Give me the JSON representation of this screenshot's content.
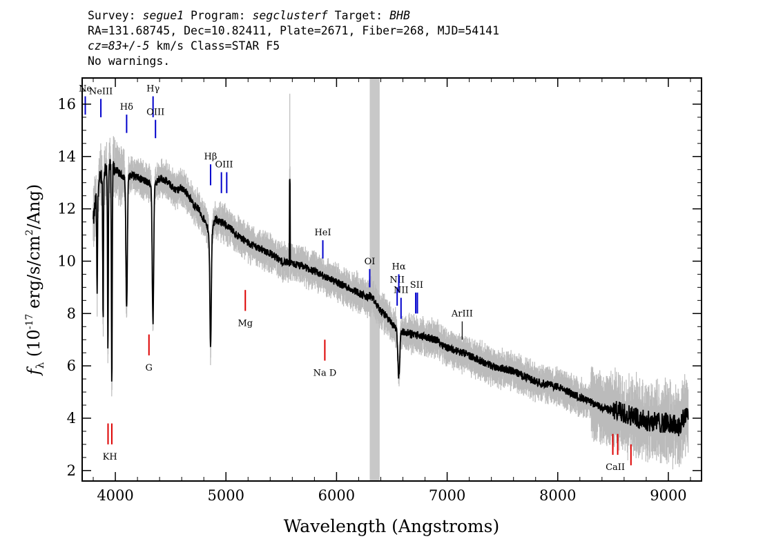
{
  "header": {
    "line1_prefix": "Survey: ",
    "survey": "segue1",
    "line1_mid": " Program: ",
    "program": "segclusterf",
    "line1_mid2": " Target: ",
    "target": "BHB",
    "line2": "RA=131.68745, Dec=10.82411, Plate=2671, Fiber=268, MJD=54141",
    "cz": "cz=83+/-5",
    "line3_rest": " km/s Class=STAR F5",
    "line4": "No warnings."
  },
  "chart_data": {
    "type": "line",
    "xlabel": "Wavelength (Angstroms)",
    "ylabel": "f_λ (10^-17 erg/s/cm²/Ang)",
    "xlim": [
      3700,
      9300
    ],
    "ylim": [
      1.6,
      17.0
    ],
    "xticks": [
      4000,
      5000,
      6000,
      7000,
      8000,
      9000
    ],
    "yticks": [
      2,
      4,
      6,
      8,
      10,
      12,
      14,
      16
    ],
    "masked_region": [
      6300,
      6390
    ],
    "colors": {
      "spectrum": "#000000",
      "noise": "#bbbbbb",
      "mask": "#c8c8c8",
      "emission": "#0000cc",
      "absorption": "#dd0000",
      "neutral": "#000000"
    },
    "series": [
      {
        "x": [
          3800,
          3830,
          3860,
          3900,
          3950,
          4000,
          4050,
          4100,
          4150,
          4200,
          4250,
          4300,
          4350,
          4400,
          4450,
          4500,
          4550,
          4600,
          4650,
          4700,
          4750,
          4800,
          4860,
          4900,
          5000,
          5100,
          5200,
          5300,
          5400,
          5500,
          5600,
          5700,
          5800,
          5900,
          6000,
          6100,
          6200,
          6280,
          6300,
          6320,
          6400,
          6450,
          6500,
          6550,
          6600,
          6700,
          6800,
          6900,
          7000,
          7200,
          7400,
          7600,
          7800,
          8000,
          8200,
          8400,
          8600,
          8800,
          9000,
          9100,
          9180
        ],
        "y": [
          11.5,
          12.6,
          13.1,
          13.5,
          13.6,
          13.5,
          13.3,
          13.2,
          13.3,
          13.2,
          13.1,
          13.0,
          12.9,
          13.2,
          13.1,
          12.9,
          12.7,
          12.8,
          12.6,
          12.2,
          12.0,
          11.6,
          11.0,
          11.6,
          11.4,
          11.0,
          10.7,
          10.5,
          10.3,
          10.0,
          9.9,
          9.8,
          9.6,
          9.4,
          9.2,
          9.0,
          8.8,
          8.6,
          8.7,
          8.6,
          8.1,
          7.9,
          7.6,
          7.4,
          7.3,
          7.2,
          7.1,
          7.0,
          6.7,
          6.4,
          6.0,
          5.8,
          5.4,
          5.2,
          4.8,
          4.4,
          4.2,
          3.9,
          3.8,
          3.7,
          4.3
        ]
      }
    ],
    "absorption_features": [
      {
        "x": 3835,
        "depth": 4.0
      },
      {
        "x": 3889,
        "depth": 5.5
      },
      {
        "x": 3933,
        "depth": 7.0
      },
      {
        "x": 3968,
        "depth": 8.5
      },
      {
        "x": 4102,
        "depth": 5.0
      },
      {
        "x": 4340,
        "depth": 5.3
      },
      {
        "x": 4861,
        "depth": 4.4
      },
      {
        "x": 6563,
        "depth": 1.8
      }
    ],
    "spikes": [
      {
        "x": 5577,
        "top": 13.0
      }
    ],
    "line_markers": [
      {
        "label": "Ne",
        "x": 3728,
        "type": "emission",
        "y_top": 16.3,
        "y_bot": 15.6
      },
      {
        "label": "NeIII",
        "x": 3869,
        "type": "emission",
        "y_top": 16.2,
        "y_bot": 15.5
      },
      {
        "label": "Hδ",
        "x": 4102,
        "type": "emission",
        "y_top": 15.6,
        "y_bot": 14.9
      },
      {
        "label": "Hγ",
        "x": 4341,
        "type": "emission",
        "y_top": 16.3,
        "y_bot": 15.5
      },
      {
        "label": "OIII",
        "x": 4363,
        "type": "emission",
        "y_top": 15.4,
        "y_bot": 14.7
      },
      {
        "label": "Hβ",
        "x": 4861,
        "type": "emission",
        "y_top": 13.7,
        "y_bot": 12.9
      },
      {
        "label": "OIII",
        "x": 4959,
        "type": "emission",
        "y_top": 13.4,
        "y_bot": 12.6
      },
      {
        "label": "",
        "x": 5007,
        "type": "emission",
        "y_top": 13.4,
        "y_bot": 12.6
      },
      {
        "label": "HeI",
        "x": 5876,
        "type": "emission",
        "y_top": 10.8,
        "y_bot": 10.1
      },
      {
        "label": "OI",
        "x": 6300,
        "type": "emission",
        "y_top": 9.7,
        "y_bot": 9.0
      },
      {
        "label": "NII",
        "x": 6548,
        "type": "emission",
        "y_top": 9.0,
        "y_bot": 8.3
      },
      {
        "label": "Hα",
        "x": 6563,
        "type": "emission",
        "y_top": 9.5,
        "y_bot": 8.8
      },
      {
        "label": "NII",
        "x": 6583,
        "type": "emission",
        "y_top": 8.6,
        "y_bot": 7.8
      },
      {
        "label": "SII",
        "x": 6716,
        "type": "emission",
        "y_top": 8.8,
        "y_bot": 8.0
      },
      {
        "label": "",
        "x": 6731,
        "type": "emission",
        "y_top": 8.8,
        "y_bot": 8.0
      },
      {
        "label": "ArIII",
        "x": 7136,
        "type": "neutral",
        "y_top": 7.7,
        "y_bot": 7.0
      },
      {
        "label": "KH",
        "x": 3934,
        "type": "absorption",
        "y_top": 3.8,
        "y_bot": 3.0
      },
      {
        "label": "",
        "x": 3968,
        "type": "absorption",
        "y_top": 3.8,
        "y_bot": 3.0
      },
      {
        "label": "G",
        "x": 4304,
        "type": "absorption",
        "y_top": 7.2,
        "y_bot": 6.4
      },
      {
        "label": "Mg",
        "x": 5175,
        "type": "absorption",
        "y_top": 8.9,
        "y_bot": 8.1
      },
      {
        "label": "Na D",
        "x": 5894,
        "type": "absorption",
        "y_top": 7.0,
        "y_bot": 6.2
      },
      {
        "label": "CaII",
        "x": 8498,
        "type": "absorption",
        "y_top": 3.4,
        "y_bot": 2.6
      },
      {
        "label": "",
        "x": 8542,
        "type": "absorption",
        "y_top": 3.4,
        "y_bot": 2.6
      },
      {
        "label": "",
        "x": 8662,
        "type": "absorption",
        "y_top": 3.0,
        "y_bot": 2.2
      }
    ]
  }
}
